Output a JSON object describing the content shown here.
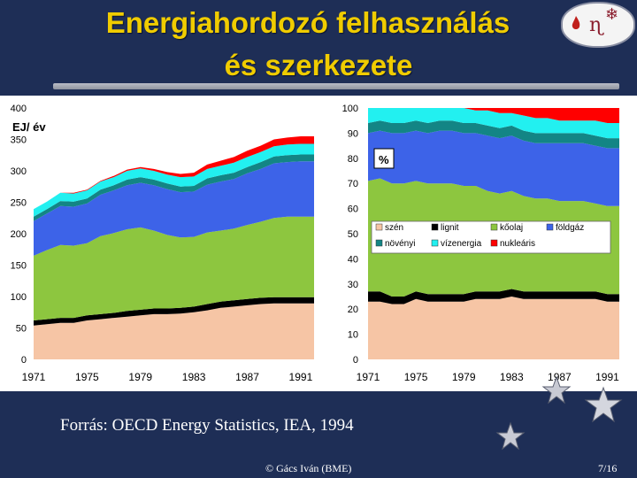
{
  "slide": {
    "title_line1": "Energiahordozó felhasználás",
    "title_line2": "és szerkezete",
    "source": "Forrás: OECD Energy Statistics, IEA, 1994",
    "footer_left": "© Gács Iván (BME)",
    "footer_right": "7/16",
    "logo_symbols": [
      "ɳ",
      "❄"
    ]
  },
  "colors": {
    "background": "#1e2e56",
    "title": "#f0cc00",
    "szén": "#f6c5a5",
    "lignit": "#000000",
    "kőolaj": "#8dc63f",
    "földgáz": "#3d63e8",
    "növényi": "#138585",
    "vízenergia": "#22f0f0",
    "nukleáris": "#ff0000"
  },
  "legend": {
    "items": [
      {
        "label": "szén",
        "key": "szén"
      },
      {
        "label": "lignit",
        "key": "lignit"
      },
      {
        "label": "kőolaj",
        "key": "kőolaj"
      },
      {
        "label": "földgáz",
        "key": "földgáz"
      },
      {
        "label": "növényi",
        "key": "növényi"
      },
      {
        "label": "vízenergia",
        "key": "vízenergia"
      },
      {
        "label": "nukleáris",
        "key": "nukleáris"
      }
    ]
  },
  "chart_data": [
    {
      "type": "area",
      "stacked": true,
      "ylabel": "EJ/ év",
      "ylim": [
        0,
        400
      ],
      "yticks": [
        0,
        50,
        100,
        150,
        200,
        250,
        300,
        350,
        400
      ],
      "xlim": [
        1971,
        1992
      ],
      "xticks": [
        1971,
        1975,
        1979,
        1983,
        1987,
        1991
      ],
      "x": [
        1971,
        1972,
        1973,
        1974,
        1975,
        1976,
        1977,
        1978,
        1979,
        1980,
        1981,
        1982,
        1983,
        1984,
        1985,
        1986,
        1987,
        1988,
        1989,
        1990,
        1991,
        1992
      ],
      "series": [
        {
          "name": "szén",
          "values": [
            54,
            56,
            58,
            58,
            62,
            64,
            66,
            68,
            70,
            72,
            72,
            73,
            75,
            78,
            82,
            84,
            86,
            88,
            89,
            89,
            89,
            89
          ]
        },
        {
          "name": "lignit",
          "values": [
            8,
            8,
            8,
            8,
            8,
            8,
            8,
            9,
            9,
            9,
            9,
            9,
            9,
            10,
            10,
            10,
            10,
            10,
            10,
            10,
            10,
            10
          ]
        },
        {
          "name": "kőolaj",
          "values": [
            103,
            110,
            116,
            115,
            115,
            124,
            127,
            130,
            131,
            124,
            117,
            112,
            111,
            114,
            113,
            114,
            118,
            121,
            126,
            128,
            128,
            128
          ]
        },
        {
          "name": "földgáz",
          "values": [
            55,
            58,
            62,
            62,
            63,
            66,
            68,
            70,
            71,
            72,
            73,
            72,
            72,
            76,
            78,
            79,
            82,
            84,
            87,
            87,
            88,
            88
          ]
        },
        {
          "name": "növényi",
          "values": [
            7,
            7,
            8,
            8,
            8,
            8,
            8,
            9,
            9,
            9,
            9,
            9,
            9,
            10,
            10,
            10,
            10,
            11,
            11,
            11,
            11,
            11
          ]
        },
        {
          "name": "vízenergia",
          "values": [
            12,
            12,
            13,
            13,
            13,
            13,
            13,
            14,
            14,
            14,
            14,
            15,
            15,
            15,
            15,
            16,
            16,
            16,
            16,
            17,
            17,
            17
          ]
        },
        {
          "name": "nukleáris",
          "values": [
            0,
            0,
            0,
            1,
            1,
            1,
            2,
            2,
            2,
            3,
            4,
            5,
            6,
            7,
            8,
            9,
            10,
            10,
            11,
            11,
            12,
            12
          ]
        }
      ]
    },
    {
      "type": "area",
      "stacked": true,
      "percent": true,
      "ylabel": "%",
      "ylim": [
        0,
        100
      ],
      "yticks": [
        0,
        10,
        20,
        30,
        40,
        50,
        60,
        70,
        80,
        90,
        100
      ],
      "xlim": [
        1971,
        1992
      ],
      "xticks": [
        1971,
        1975,
        1979,
        1983,
        1987,
        1991
      ],
      "x": [
        1971,
        1972,
        1973,
        1974,
        1975,
        1976,
        1977,
        1978,
        1979,
        1980,
        1981,
        1982,
        1983,
        1984,
        1985,
        1986,
        1987,
        1988,
        1989,
        1990,
        1991,
        1992
      ],
      "series": [
        {
          "name": "szén",
          "values": [
            23,
            23,
            22,
            22,
            24,
            23,
            23,
            23,
            23,
            24,
            24,
            24,
            25,
            24,
            24,
            24,
            24,
            24,
            24,
            24,
            23,
            23
          ]
        },
        {
          "name": "lignit",
          "values": [
            4,
            4,
            3,
            3,
            3,
            3,
            3,
            3,
            3,
            3,
            3,
            3,
            3,
            3,
            3,
            3,
            3,
            3,
            3,
            3,
            3,
            3
          ]
        },
        {
          "name": "kőolaj",
          "values": [
            44,
            45,
            45,
            45,
            44,
            44,
            44,
            44,
            43,
            42,
            40,
            39,
            39,
            38,
            37,
            37,
            36,
            36,
            36,
            35,
            35,
            35
          ]
        },
        {
          "name": "földgáz",
          "values": [
            19,
            19,
            20,
            20,
            20,
            20,
            21,
            21,
            21,
            21,
            22,
            22,
            22,
            22,
            22,
            22,
            23,
            23,
            23,
            23,
            23,
            23
          ]
        },
        {
          "name": "növényi",
          "values": [
            4,
            4,
            4,
            4,
            4,
            4,
            4,
            4,
            4,
            4,
            4,
            4,
            4,
            4,
            4,
            4,
            4,
            4,
            4,
            4,
            4,
            4
          ]
        },
        {
          "name": "vízenergia",
          "values": [
            6,
            5,
            6,
            6,
            5,
            6,
            5,
            5,
            6,
            5,
            6,
            6,
            5,
            6,
            6,
            6,
            5,
            5,
            5,
            6,
            6,
            6
          ]
        },
        {
          "name": "nukleáris",
          "values": [
            0,
            0,
            0,
            0,
            0,
            0,
            0,
            0,
            0,
            1,
            1,
            2,
            2,
            3,
            4,
            4,
            5,
            5,
            5,
            5,
            6,
            6
          ]
        }
      ]
    }
  ]
}
